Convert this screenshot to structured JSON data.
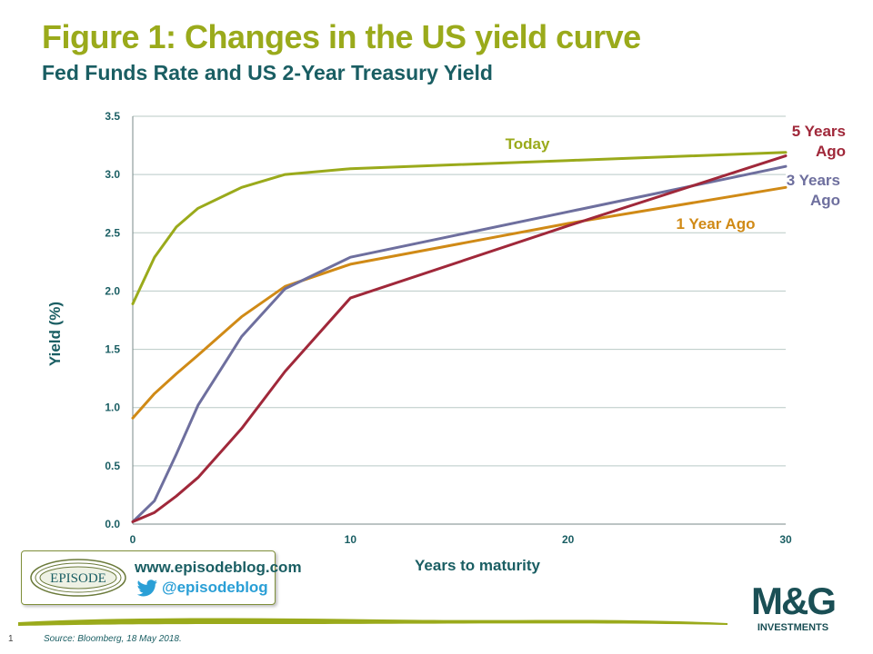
{
  "header": {
    "title": "Figure 1: Changes in the US yield curve",
    "subtitle": "Fed Funds Rate and US 2-Year Treasury Yield"
  },
  "chart_data": {
    "type": "line",
    "xlabel": "Years to maturity",
    "ylabel": "Yield (%)",
    "xlim": [
      0,
      30
    ],
    "ylim": [
      0,
      3.5
    ],
    "x_ticks": [
      0,
      10,
      20,
      30
    ],
    "y_ticks": [
      "0.0",
      "0.5",
      "1.0",
      "1.5",
      "2.0",
      "2.5",
      "3.0",
      "3.5"
    ],
    "grid": "horizontal",
    "series": [
      {
        "name": "Today",
        "color": "#9aaa1b",
        "x": [
          0,
          1,
          2,
          3,
          5,
          7,
          10,
          20,
          30
        ],
        "y": [
          1.89,
          2.29,
          2.55,
          2.71,
          2.89,
          3.0,
          3.05,
          3.12,
          3.19
        ]
      },
      {
        "name": "1 Year Ago",
        "color": "#d08a16",
        "x": [
          0,
          1,
          2,
          3,
          5,
          7,
          10,
          20,
          30
        ],
        "y": [
          0.91,
          1.12,
          1.29,
          1.45,
          1.78,
          2.04,
          2.23,
          2.58,
          2.89
        ]
      },
      {
        "name": "3 Years Ago",
        "label_lines": [
          "3 Years",
          "Ago"
        ],
        "color": "#6e6f9e",
        "x": [
          0,
          1,
          2,
          3,
          5,
          7,
          10,
          20,
          30
        ],
        "y": [
          0.02,
          0.2,
          0.6,
          1.02,
          1.61,
          2.02,
          2.29,
          2.68,
          3.07
        ]
      },
      {
        "name": "5 Years Ago",
        "label_lines": [
          "5 Years",
          "Ago"
        ],
        "color": "#a0283a",
        "x": [
          0,
          1,
          2,
          3,
          5,
          7,
          10,
          20,
          30
        ],
        "y": [
          0.02,
          0.1,
          0.24,
          0.4,
          0.82,
          1.31,
          1.94,
          2.56,
          3.16
        ]
      }
    ]
  },
  "branding": {
    "logo_text": "EPISODE",
    "url": "www.episodeblog.com",
    "handle": "@episodeblog",
    "company_main": "M&G",
    "company_sub": "INVESTMENTS"
  },
  "footer": {
    "page_number": "1",
    "source": "Source: Bloomberg, 18 May 2018."
  },
  "colors": {
    "title": "#9aaa1b",
    "subtitle": "#1a5e63",
    "axis_text": "#1a5e63",
    "grid": "#b9c9c6",
    "twitter": "#2a9fd6"
  }
}
